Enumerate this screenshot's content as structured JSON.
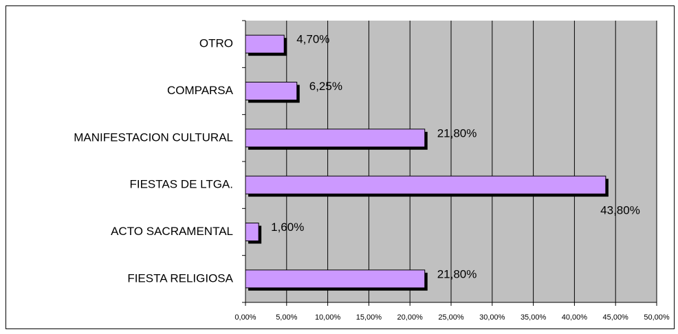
{
  "chart_data": {
    "type": "bar",
    "orientation": "horizontal",
    "categories": [
      "OTRO",
      "COMPARSA",
      "MANIFESTACION CULTURAL",
      "FIESTAS DE LTGA.",
      "ACTO SACRAMENTAL",
      "FIESTA RELIGIOSA"
    ],
    "values": [
      4.7,
      6.25,
      21.8,
      43.8,
      1.6,
      21.8
    ],
    "value_labels": [
      "4,70%",
      "6,25%",
      "21,80%",
      "43,80%",
      "1,60%",
      "21,80%"
    ],
    "color": "#cc99ff",
    "xlim": [
      0,
      50
    ],
    "xticks": [
      {
        "value": 0,
        "label": "0,00%"
      },
      {
        "value": 5,
        "label": "5,00%"
      },
      {
        "value": 10,
        "label": "10,00%"
      },
      {
        "value": 15,
        "label": "15,00%"
      },
      {
        "value": 20,
        "label": "20,00%"
      },
      {
        "value": 25,
        "label": "25,00%"
      },
      {
        "value": 30,
        "label": "30,00%"
      },
      {
        "value": 35,
        "label": "35,00%"
      },
      {
        "value": 40,
        "label": "40,00%"
      },
      {
        "value": 45,
        "label": "45,00%"
      },
      {
        "value": 50,
        "label": "50,00%"
      }
    ],
    "grid": true
  }
}
